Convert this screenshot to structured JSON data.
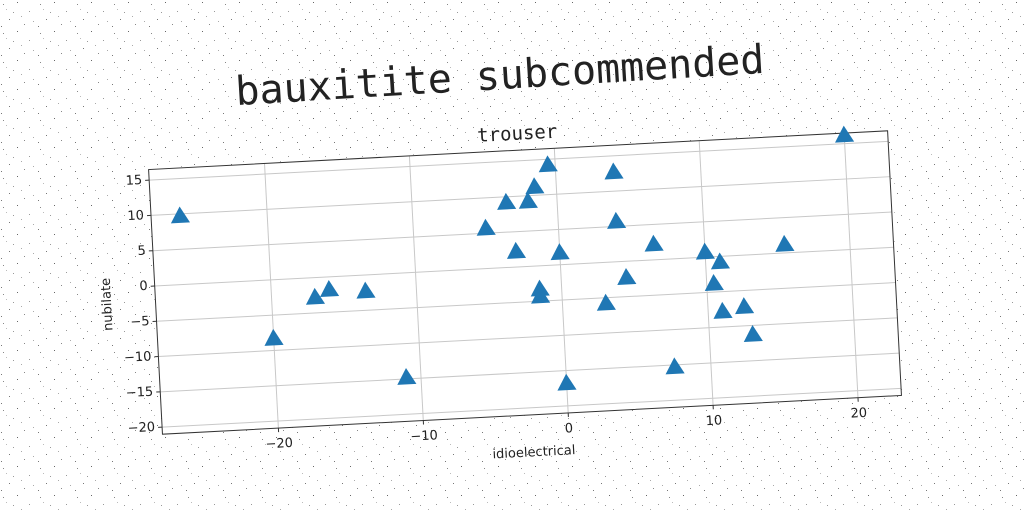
{
  "chart_data": {
    "type": "scatter",
    "title": "bauxitite subcommended",
    "subtitle": "trouser",
    "x_label": "idioelectrical",
    "y_label": "nubilate",
    "series": [
      {
        "name": "nubilate",
        "color": "#1f77b4",
        "x": [
          -26,
          -20,
          -17,
          -16,
          -13.5,
          -11,
          -5,
          -3,
          -3.5,
          -2,
          -1.5,
          -0.5,
          -1.5,
          -1.5,
          0,
          0,
          3,
          4,
          4,
          4.5,
          6.5,
          7.5,
          10,
          11,
          10.5,
          11,
          12.5,
          13,
          15.5,
          20
        ],
        "values": [
          9.5,
          -8.5,
          -3,
          -2,
          -2.5,
          -15,
          5.5,
          2,
          9,
          9,
          11,
          14,
          -3.5,
          -4.5,
          1.5,
          -17,
          -6,
          12.5,
          5.5,
          -2.5,
          2,
          -15.5,
          0.5,
          -1,
          -4,
          -8,
          -7.5,
          -11.5,
          1,
          16
        ]
      }
    ],
    "xlim": [
      -28,
      23
    ],
    "ylim": [
      -21,
      16.5
    ],
    "xticks": [
      {
        "value": -20,
        "label": "−20"
      },
      {
        "value": -10,
        "label": "−10"
      },
      0,
      10,
      20
    ],
    "yticks": [
      {
        "value": -20,
        "label": "−20"
      },
      {
        "value": -15,
        "label": "−15"
      },
      {
        "value": -10,
        "label": "−10"
      },
      {
        "value": -5,
        "label": "−5"
      },
      0,
      5,
      10,
      15
    ],
    "grid": true,
    "marker": "triangle"
  }
}
